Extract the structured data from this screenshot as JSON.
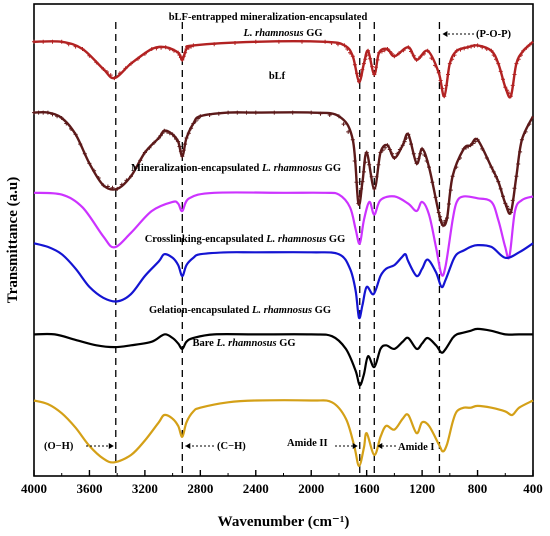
{
  "chart_data": {
    "type": "line",
    "xlabel": "Wavenumber (cm⁻¹)",
    "ylabel": "Transmittance (a.u)",
    "xlim": [
      4000,
      400
    ],
    "x_direction": "reversed",
    "x_ticks": [
      "4000",
      "3600",
      "3200",
      "2800",
      "2400",
      "2000",
      "1600",
      "1200",
      "800",
      "400"
    ],
    "y_ticks_shown": false,
    "grid": false,
    "series": [
      {
        "name_parts": [
          "bLF-entrapped mineralization-encapsulated",
          "L. rhamnosus",
          " GG"
        ],
        "color": "#b22222",
        "marker": "+",
        "offset": 0.92,
        "points": [
          [
            4000,
            0.0
          ],
          [
            3800,
            0.0
          ],
          [
            3650,
            0.04
          ],
          [
            3500,
            0.15
          ],
          [
            3420,
            0.2
          ],
          [
            3300,
            0.12
          ],
          [
            3150,
            0.04
          ],
          [
            3050,
            0.03
          ],
          [
            2960,
            0.06
          ],
          [
            2930,
            0.1
          ],
          [
            2900,
            0.04
          ],
          [
            2850,
            0.02
          ],
          [
            2400,
            0.0
          ],
          [
            1900,
            0.0
          ],
          [
            1760,
            0.02
          ],
          [
            1700,
            0.08
          ],
          [
            1655,
            0.22
          ],
          [
            1620,
            0.12
          ],
          [
            1590,
            0.05
          ],
          [
            1545,
            0.18
          ],
          [
            1510,
            0.06
          ],
          [
            1450,
            0.04
          ],
          [
            1400,
            0.08
          ],
          [
            1300,
            0.03
          ],
          [
            1240,
            0.1
          ],
          [
            1160,
            0.05
          ],
          [
            1080,
            0.17
          ],
          [
            1040,
            0.3
          ],
          [
            1000,
            0.12
          ],
          [
            950,
            0.05
          ],
          [
            870,
            0.03
          ],
          [
            800,
            0.02
          ],
          [
            700,
            0.05
          ],
          [
            650,
            0.12
          ],
          [
            600,
            0.25
          ],
          [
            560,
            0.3
          ],
          [
            520,
            0.12
          ],
          [
            470,
            0.05
          ],
          [
            400,
            0.0
          ]
        ]
      },
      {
        "name_parts": [
          "bLf",
          "",
          ""
        ],
        "color": "#5c1a1a",
        "marker": "+",
        "offset": 0.77,
        "points": [
          [
            4000,
            0.0
          ],
          [
            3900,
            0.0
          ],
          [
            3800,
            0.03
          ],
          [
            3700,
            0.12
          ],
          [
            3600,
            0.28
          ],
          [
            3500,
            0.4
          ],
          [
            3400,
            0.42
          ],
          [
            3300,
            0.35
          ],
          [
            3200,
            0.22
          ],
          [
            3100,
            0.14
          ],
          [
            3060,
            0.1
          ],
          [
            3000,
            0.12
          ],
          [
            2960,
            0.16
          ],
          [
            2930,
            0.24
          ],
          [
            2900,
            0.14
          ],
          [
            2850,
            0.06
          ],
          [
            2800,
            0.02
          ],
          [
            2600,
            0.0
          ],
          [
            2400,
            0.0
          ],
          [
            2000,
            0.0
          ],
          [
            1800,
            0.02
          ],
          [
            1700,
            0.15
          ],
          [
            1660,
            0.5
          ],
          [
            1630,
            0.38
          ],
          [
            1600,
            0.22
          ],
          [
            1545,
            0.42
          ],
          [
            1500,
            0.22
          ],
          [
            1450,
            0.18
          ],
          [
            1400,
            0.25
          ],
          [
            1340,
            0.18
          ],
          [
            1300,
            0.12
          ],
          [
            1240,
            0.28
          ],
          [
            1200,
            0.2
          ],
          [
            1150,
            0.3
          ],
          [
            1080,
            0.55
          ],
          [
            1050,
            0.62
          ],
          [
            1020,
            0.58
          ],
          [
            980,
            0.35
          ],
          [
            900,
            0.2
          ],
          [
            850,
            0.18
          ],
          [
            800,
            0.15
          ],
          [
            700,
            0.3
          ],
          [
            650,
            0.38
          ],
          [
            600,
            0.5
          ],
          [
            560,
            0.55
          ],
          [
            520,
            0.35
          ],
          [
            480,
            0.15
          ],
          [
            400,
            0.02
          ]
        ]
      },
      {
        "name_parts": [
          "Mineralization-encapsulated ",
          "L. rhamnosus",
          " GG"
        ],
        "color": "#cc33ff",
        "marker": "",
        "offset": 0.6,
        "points": [
          [
            4000,
            0.0
          ],
          [
            3800,
            0.01
          ],
          [
            3650,
            0.08
          ],
          [
            3500,
            0.24
          ],
          [
            3420,
            0.3
          ],
          [
            3300,
            0.22
          ],
          [
            3150,
            0.1
          ],
          [
            3000,
            0.05
          ],
          [
            2960,
            0.06
          ],
          [
            2930,
            0.1
          ],
          [
            2880,
            0.03
          ],
          [
            2700,
            0.0
          ],
          [
            2200,
            0.0
          ],
          [
            1900,
            0.0
          ],
          [
            1800,
            0.01
          ],
          [
            1720,
            0.08
          ],
          [
            1680,
            0.2
          ],
          [
            1650,
            0.28
          ],
          [
            1620,
            0.15
          ],
          [
            1580,
            0.05
          ],
          [
            1545,
            0.12
          ],
          [
            1500,
            0.04
          ],
          [
            1400,
            0.02
          ],
          [
            1300,
            0.06
          ],
          [
            1240,
            0.1
          ],
          [
            1200,
            0.05
          ],
          [
            1150,
            0.12
          ],
          [
            1100,
            0.3
          ],
          [
            1060,
            0.45
          ],
          [
            1030,
            0.4
          ],
          [
            980,
            0.15
          ],
          [
            950,
            0.05
          ],
          [
            900,
            0.02
          ],
          [
            800,
            0.03
          ],
          [
            700,
            0.05
          ],
          [
            650,
            0.15
          ],
          [
            600,
            0.3
          ],
          [
            570,
            0.35
          ],
          [
            530,
            0.1
          ],
          [
            480,
            0.04
          ],
          [
            400,
            0.02
          ]
        ]
      },
      {
        "name_parts": [
          "Crosslinking-encapsulated ",
          "L. rhamnosus",
          " GG"
        ],
        "color": "#1414d2",
        "marker": "",
        "offset": 0.47,
        "points": [
          [
            4000,
            -0.06
          ],
          [
            3900,
            -0.04
          ],
          [
            3800,
            0.0
          ],
          [
            3700,
            0.08
          ],
          [
            3600,
            0.18
          ],
          [
            3500,
            0.24
          ],
          [
            3400,
            0.26
          ],
          [
            3300,
            0.22
          ],
          [
            3200,
            0.12
          ],
          [
            3100,
            0.04
          ],
          [
            3060,
            0.0
          ],
          [
            3000,
            0.02
          ],
          [
            2960,
            0.06
          ],
          [
            2930,
            0.12
          ],
          [
            2900,
            0.06
          ],
          [
            2850,
            0.02
          ],
          [
            2800,
            0.0
          ],
          [
            2600,
            -0.01
          ],
          [
            2400,
            -0.01
          ],
          [
            2000,
            -0.01
          ],
          [
            1800,
            0.0
          ],
          [
            1720,
            0.08
          ],
          [
            1680,
            0.2
          ],
          [
            1655,
            0.35
          ],
          [
            1630,
            0.28
          ],
          [
            1600,
            0.18
          ],
          [
            1550,
            0.22
          ],
          [
            1500,
            0.12
          ],
          [
            1460,
            0.08
          ],
          [
            1400,
            0.06
          ],
          [
            1350,
            0.02
          ],
          [
            1320,
            0.0
          ],
          [
            1300,
            0.04
          ],
          [
            1240,
            0.12
          ],
          [
            1200,
            0.08
          ],
          [
            1160,
            0.03
          ],
          [
            1100,
            0.1
          ],
          [
            1060,
            0.18
          ],
          [
            1030,
            0.14
          ],
          [
            980,
            0.04
          ],
          [
            950,
            0.0
          ],
          [
            900,
            -0.02
          ],
          [
            850,
            -0.04
          ],
          [
            800,
            -0.05
          ],
          [
            700,
            -0.04
          ],
          [
            600,
            0.02
          ],
          [
            500,
            -0.01
          ],
          [
            400,
            -0.06
          ]
        ]
      },
      {
        "name_parts": [
          "Gelation-encapsulated ",
          "L. rhamnosus",
          " GG"
        ],
        "color": "#000000",
        "marker": "",
        "offset": 0.3,
        "points": [
          [
            4000,
            0.0
          ],
          [
            3850,
            0.0
          ],
          [
            3700,
            0.03
          ],
          [
            3550,
            0.06
          ],
          [
            3420,
            0.07
          ],
          [
            3300,
            0.06
          ],
          [
            3150,
            0.04
          ],
          [
            3060,
            0.0
          ],
          [
            3000,
            0.02
          ],
          [
            2960,
            0.05
          ],
          [
            2930,
            0.08
          ],
          [
            2900,
            0.04
          ],
          [
            2850,
            0.02
          ],
          [
            2700,
            0.0
          ],
          [
            2400,
            0.0
          ],
          [
            2000,
            0.0
          ],
          [
            1850,
            0.01
          ],
          [
            1750,
            0.08
          ],
          [
            1680,
            0.2
          ],
          [
            1650,
            0.28
          ],
          [
            1620,
            0.22
          ],
          [
            1590,
            0.12
          ],
          [
            1545,
            0.18
          ],
          [
            1500,
            0.08
          ],
          [
            1460,
            0.06
          ],
          [
            1400,
            0.08
          ],
          [
            1340,
            0.04
          ],
          [
            1300,
            0.02
          ],
          [
            1240,
            0.08
          ],
          [
            1200,
            0.05
          ],
          [
            1160,
            0.02
          ],
          [
            1100,
            0.06
          ],
          [
            1060,
            0.1
          ],
          [
            1030,
            0.08
          ],
          [
            980,
            0.02
          ],
          [
            950,
            0.0
          ],
          [
            900,
            -0.01
          ],
          [
            850,
            -0.02
          ],
          [
            800,
            -0.03
          ],
          [
            700,
            -0.02
          ],
          [
            600,
            0.0
          ],
          [
            500,
            0.0
          ],
          [
            400,
            0.0
          ]
        ]
      },
      {
        "name_parts": [
          "Bare ",
          "L. rhamnosus",
          " GG"
        ],
        "color": "#d4a017",
        "marker": "",
        "offset": 0.16,
        "points": [
          [
            4000,
            0.0
          ],
          [
            3900,
            0.02
          ],
          [
            3800,
            0.07
          ],
          [
            3700,
            0.15
          ],
          [
            3600,
            0.25
          ],
          [
            3500,
            0.32
          ],
          [
            3420,
            0.34
          ],
          [
            3300,
            0.3
          ],
          [
            3200,
            0.22
          ],
          [
            3100,
            0.12
          ],
          [
            3060,
            0.08
          ],
          [
            3000,
            0.1
          ],
          [
            2960,
            0.14
          ],
          [
            2930,
            0.2
          ],
          [
            2900,
            0.12
          ],
          [
            2850,
            0.06
          ],
          [
            2800,
            0.04
          ],
          [
            2600,
            0.01
          ],
          [
            2400,
            0.0
          ],
          [
            2000,
            0.0
          ],
          [
            1850,
            0.01
          ],
          [
            1750,
            0.1
          ],
          [
            1690,
            0.25
          ],
          [
            1655,
            0.36
          ],
          [
            1620,
            0.26
          ],
          [
            1600,
            0.18
          ],
          [
            1545,
            0.3
          ],
          [
            1500,
            0.2
          ],
          [
            1460,
            0.14
          ],
          [
            1400,
            0.16
          ],
          [
            1340,
            0.1
          ],
          [
            1300,
            0.08
          ],
          [
            1240,
            0.18
          ],
          [
            1200,
            0.12
          ],
          [
            1150,
            0.14
          ],
          [
            1080,
            0.24
          ],
          [
            1050,
            0.28
          ],
          [
            1020,
            0.24
          ],
          [
            980,
            0.12
          ],
          [
            950,
            0.06
          ],
          [
            900,
            0.04
          ],
          [
            850,
            0.04
          ],
          [
            800,
            0.03
          ],
          [
            700,
            0.04
          ],
          [
            600,
            0.06
          ],
          [
            550,
            0.08
          ],
          [
            500,
            0.04
          ],
          [
            400,
            0.0
          ]
        ]
      }
    ],
    "reference_lines": [
      {
        "x": 3410,
        "label": "(O−H)",
        "arrow": "right"
      },
      {
        "x": 2930,
        "label": "(C−H)",
        "arrow": "left"
      },
      {
        "x": 1650,
        "label": "Amide II",
        "arrow": "right"
      },
      {
        "x": 1545,
        "label": "Amide I",
        "arrow": "left"
      },
      {
        "x": 1075,
        "label": "(P-O-P)",
        "arrow": "left"
      }
    ]
  }
}
